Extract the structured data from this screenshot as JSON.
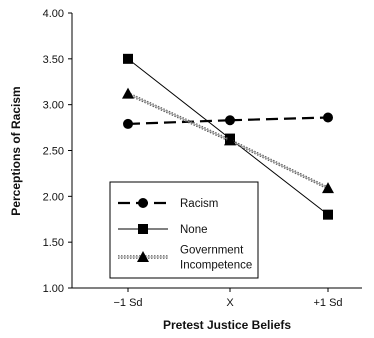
{
  "chart_data": {
    "type": "line",
    "title": "",
    "xlabel": "Pretest Justice Beliefs",
    "ylabel": "Perceptions of Racism",
    "categories": [
      "−1 Sd",
      "X",
      "+1 Sd"
    ],
    "ylim": [
      1.0,
      4.0
    ],
    "yticks": [
      "1.00",
      "1.50",
      "2.00",
      "2.50",
      "3.00",
      "3.50",
      "4.00"
    ],
    "grid": false,
    "legend_position": "lower-left",
    "series": [
      {
        "name": "Racism",
        "values": [
          2.79,
          2.83,
          2.86
        ],
        "marker": "circle",
        "line": "dashed"
      },
      {
        "name": "None",
        "values": [
          3.5,
          2.63,
          1.8
        ],
        "marker": "square",
        "line": "solid"
      },
      {
        "name": "Government Incompetence",
        "legend_lines": [
          "Government",
          "Incompetence"
        ],
        "values": [
          3.12,
          2.61,
          2.09
        ],
        "marker": "triangle",
        "line": "dotted-double"
      }
    ]
  }
}
